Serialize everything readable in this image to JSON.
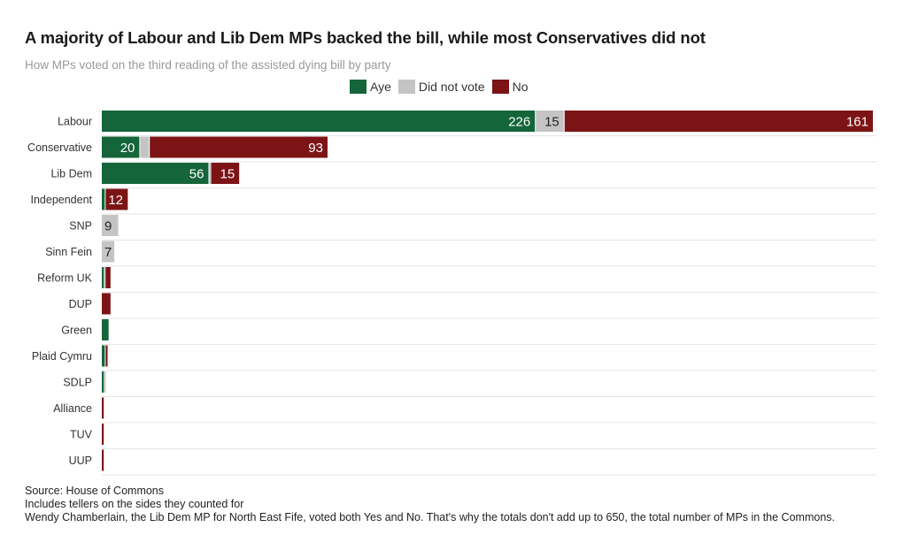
{
  "chart_data": {
    "type": "bar",
    "orientation": "horizontal",
    "stacked": true,
    "title": "A majority of Labour and Lib Dem MPs backed the bill, while most Conservatives did not",
    "subtitle": "How MPs voted on the third reading of the assisted dying bill by party",
    "categories": [
      "Labour",
      "Conservative",
      "Lib Dem",
      "Independent",
      "SNP",
      "Sinn Fein",
      "Reform UK",
      "DUP",
      "Green",
      "Plaid Cymru",
      "SDLP",
      "Alliance",
      "TUV",
      "UUP"
    ],
    "series": [
      {
        "name": "Aye",
        "color": "#15653a",
        "values": [
          226,
          20,
          56,
          2,
          0,
          0,
          1,
          0,
          4,
          2,
          1,
          0,
          0,
          0
        ]
      },
      {
        "name": "Did not vote",
        "color": "#c4c4c4",
        "values": [
          15,
          5,
          1,
          0,
          9,
          7,
          1,
          0,
          0,
          0,
          1,
          0,
          0,
          0
        ]
      },
      {
        "name": "No",
        "color": "#7c1416",
        "values": [
          161,
          93,
          15,
          12,
          0,
          0,
          3,
          5,
          0,
          1,
          0,
          1,
          1,
          1
        ]
      }
    ],
    "data_labels": [
      [
        "226",
        "15",
        "161"
      ],
      [
        "20",
        "",
        "93"
      ],
      [
        "56",
        "",
        "15"
      ],
      [
        "",
        "",
        "12"
      ],
      [
        "",
        "9",
        ""
      ],
      [
        "",
        "7",
        ""
      ],
      [
        "",
        "",
        ""
      ],
      [
        "",
        "",
        ""
      ],
      [
        "",
        "",
        ""
      ],
      [
        "",
        "",
        ""
      ],
      [
        "",
        "",
        ""
      ],
      [
        "",
        "",
        ""
      ],
      [
        "",
        "",
        ""
      ],
      [
        "",
        "",
        ""
      ]
    ],
    "xlim": [
      0,
      402
    ],
    "grid": true,
    "legend_position": "top-center"
  },
  "legend": {
    "aye": "Aye",
    "did_not_vote": "Did not vote",
    "no": "No",
    "aye_color": "#15653a",
    "dnv_color": "#c4c4c4",
    "no_color": "#7c1416"
  },
  "footer": {
    "source": "Source: House of Commons",
    "note1": "Includes tellers on the sides they counted for",
    "note2": "Wendy Chamberlain, the Lib Dem MP for North East Fife, voted both Yes and No. That's why the totals don't add up to 650, the total number of MPs in the Commons."
  }
}
